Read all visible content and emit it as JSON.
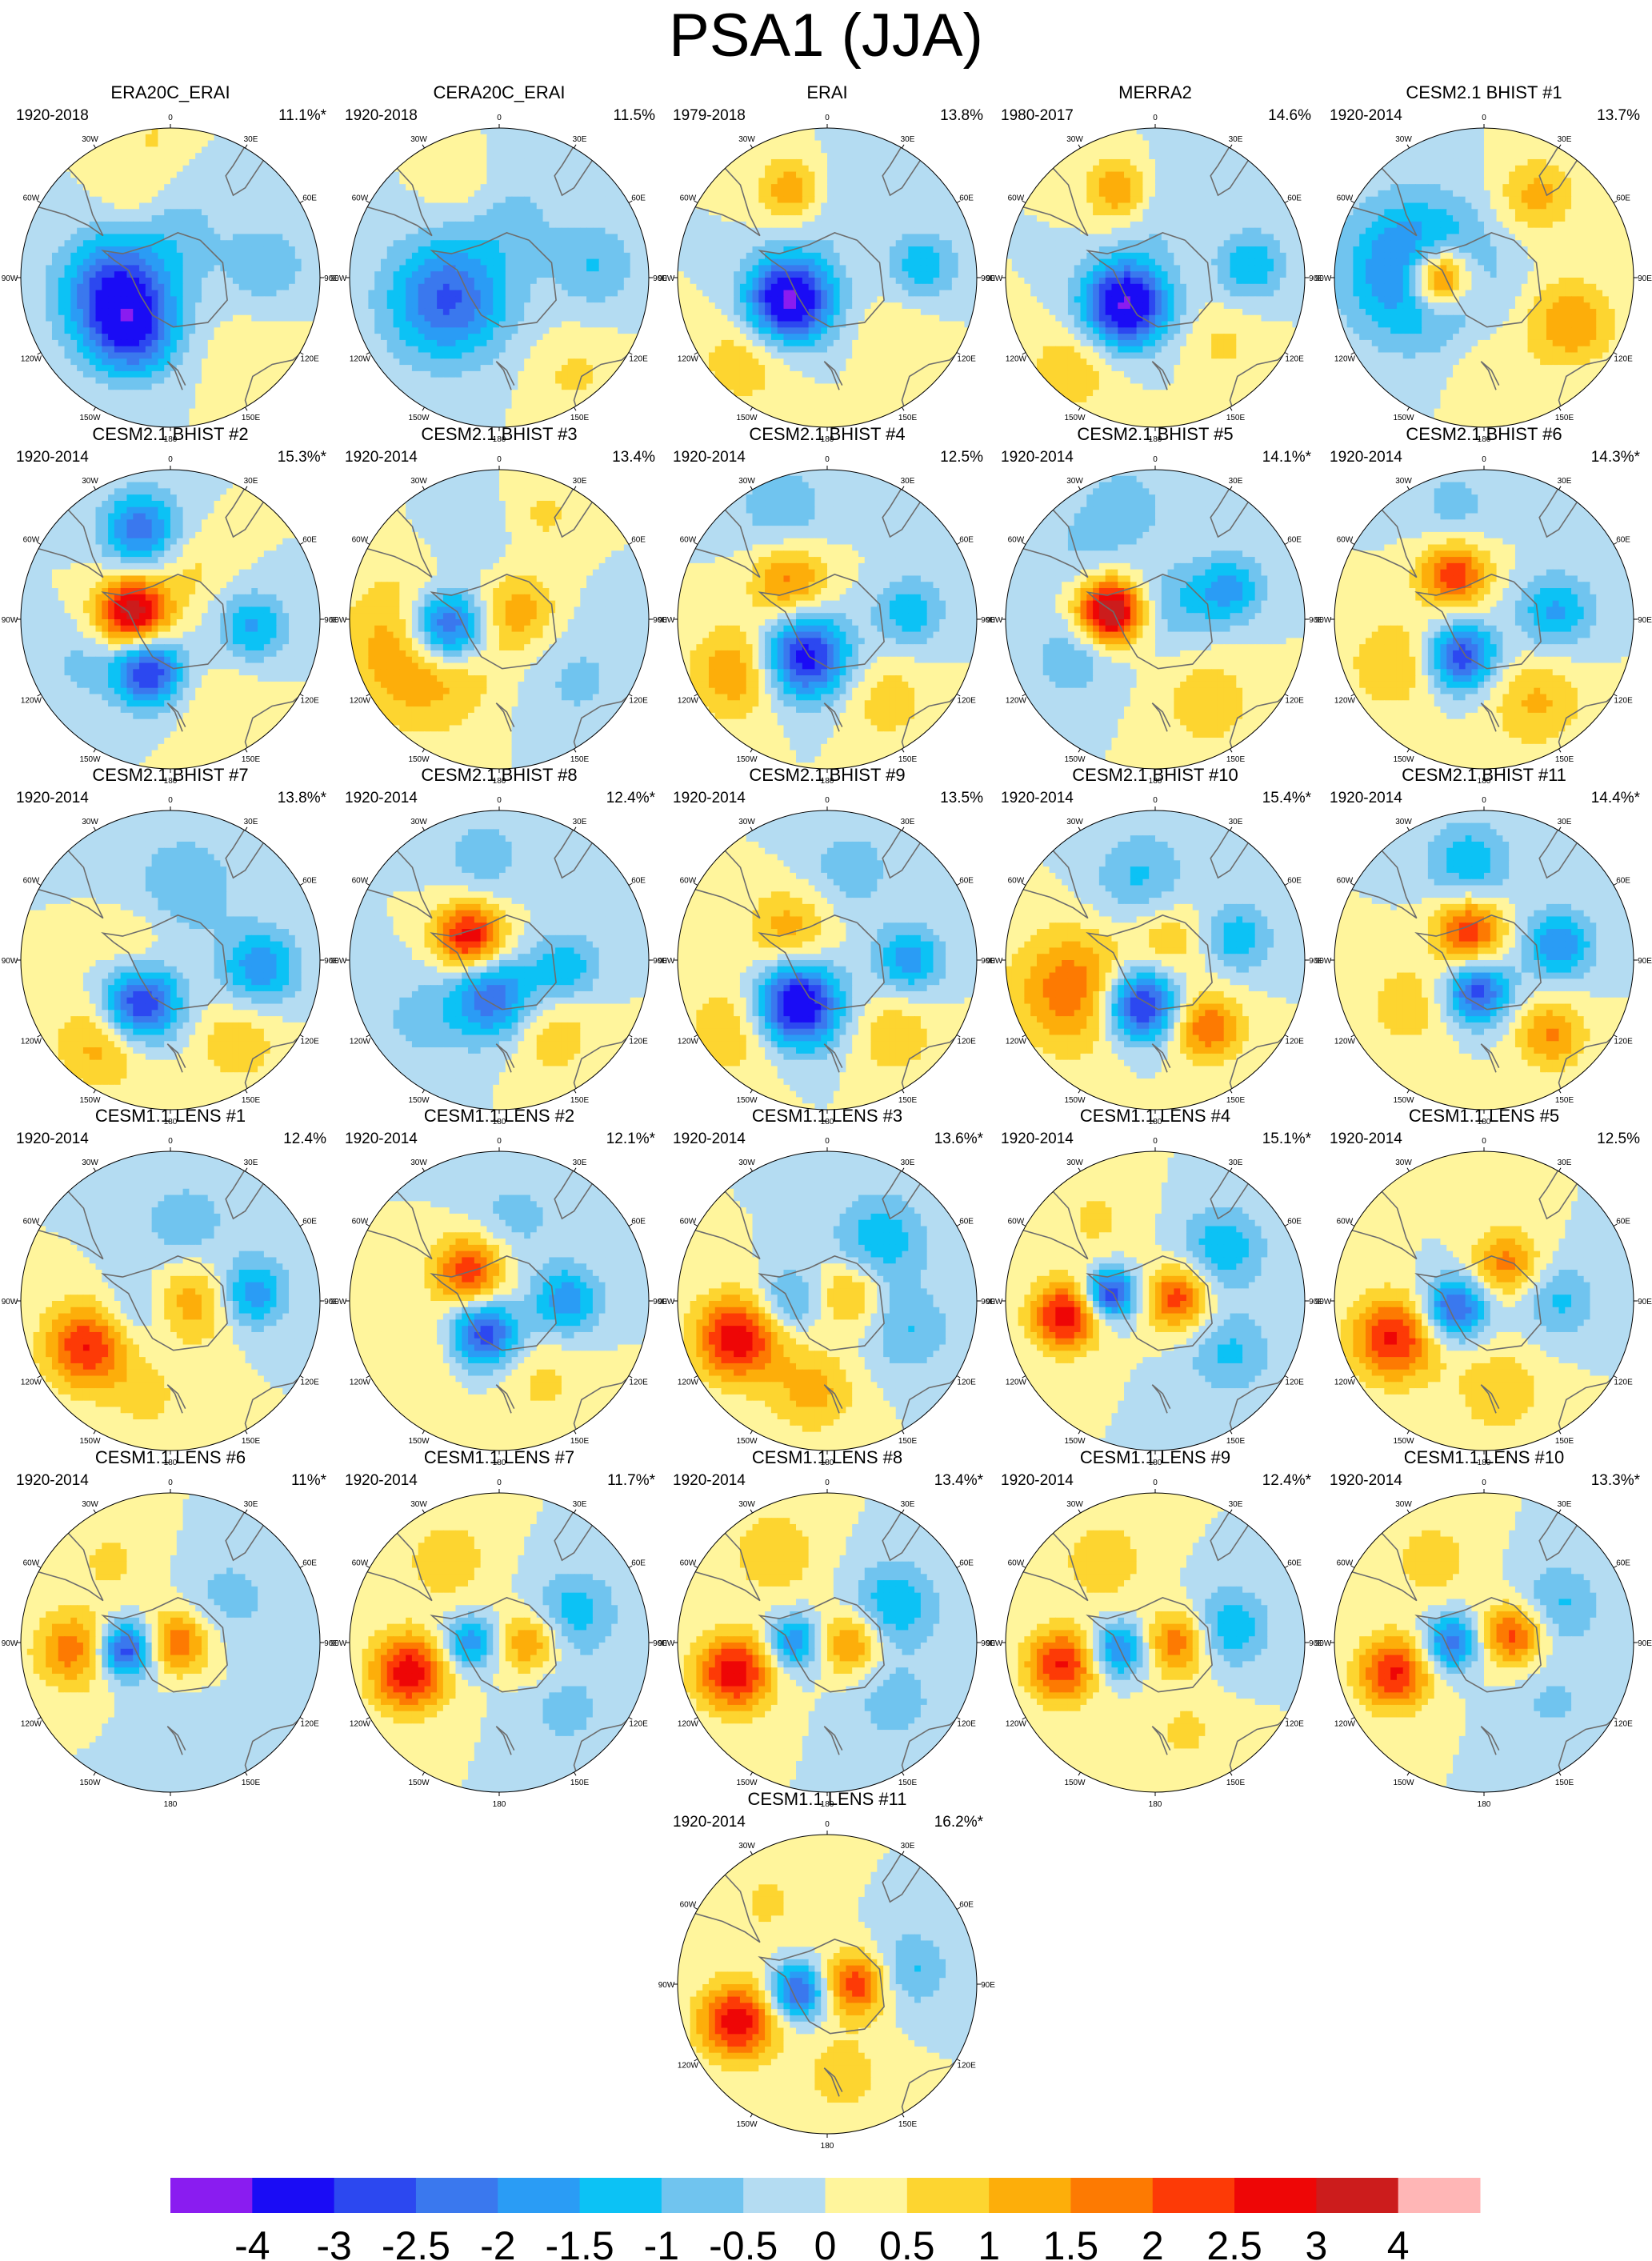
{
  "title": "PSA1 (JJA)",
  "chart_data": {
    "type": "heatmap",
    "projection": "south-polar-stereographic",
    "lon_labels": [
      "0",
      "30E",
      "60E",
      "90E",
      "120E",
      "150E",
      "180",
      "150W",
      "120W",
      "90W",
      "60W",
      "30W"
    ],
    "colorbar": {
      "levels": [
        "-4",
        "-3",
        "-2.5",
        "-2",
        "-1.5",
        "-1",
        "-0.5",
        "0",
        "0.5",
        "1",
        "1.5",
        "2",
        "2.5",
        "3",
        "4"
      ],
      "colors": [
        "#8a1cf0",
        "#1a0cf5",
        "#2c48f0",
        "#3a78ee",
        "#2a9cf5",
        "#0cc2f5",
        "#70c4ef",
        "#b4dcf2",
        "#fff59c",
        "#fdd530",
        "#fdae0a",
        "#fd7a02",
        "#fd3a06",
        "#ee0606",
        "#cc1c1c",
        "#ffb6b6"
      ]
    },
    "panels": [
      {
        "name": "ERA20C_ERAI",
        "period": "1920-2018",
        "pct": "11.1%*",
        "pattern": "era20c"
      },
      {
        "name": "CERA20C_ERAI",
        "period": "1920-2018",
        "pct": "11.5%",
        "pattern": "cera"
      },
      {
        "name": "ERAI",
        "period": "1979-2018",
        "pct": "13.8%",
        "pattern": "erai"
      },
      {
        "name": "MERRA2",
        "period": "1980-2017",
        "pct": "14.6%",
        "pattern": "merra"
      },
      {
        "name": "CESM2.1 BHIST #1",
        "period": "1920-2014",
        "pct": "13.7%",
        "pattern": "b1"
      },
      {
        "name": "CESM2.1 BHIST #2",
        "period": "1920-2014",
        "pct": "15.3%*",
        "pattern": "b2"
      },
      {
        "name": "CESM2.1 BHIST #3",
        "period": "1920-2014",
        "pct": "13.4%",
        "pattern": "b3"
      },
      {
        "name": "CESM2.1 BHIST #4",
        "period": "1920-2014",
        "pct": "12.5%",
        "pattern": "b4"
      },
      {
        "name": "CESM2.1 BHIST #5",
        "period": "1920-2014",
        "pct": "14.1%*",
        "pattern": "b5"
      },
      {
        "name": "CESM2.1 BHIST #6",
        "period": "1920-2014",
        "pct": "14.3%*",
        "pattern": "b6"
      },
      {
        "name": "CESM2.1 BHIST #7",
        "period": "1920-2014",
        "pct": "13.8%*",
        "pattern": "b7"
      },
      {
        "name": "CESM2.1 BHIST #8",
        "period": "1920-2014",
        "pct": "12.4%*",
        "pattern": "b8"
      },
      {
        "name": "CESM2.1 BHIST #9",
        "period": "1920-2014",
        "pct": "13.5%",
        "pattern": "b9"
      },
      {
        "name": "CESM2.1 BHIST #10",
        "period": "1920-2014",
        "pct": "15.4%*",
        "pattern": "b10"
      },
      {
        "name": "CESM2.1 BHIST #11",
        "period": "1920-2014",
        "pct": "14.4%*",
        "pattern": "b11"
      },
      {
        "name": "CESM1.1 LENS #1",
        "period": "1920-2014",
        "pct": "12.4%",
        "pattern": "l1"
      },
      {
        "name": "CESM1.1 LENS #2",
        "period": "1920-2014",
        "pct": "12.1%*",
        "pattern": "l2"
      },
      {
        "name": "CESM1.1 LENS #3",
        "period": "1920-2014",
        "pct": "13.6%*",
        "pattern": "l3"
      },
      {
        "name": "CESM1.1 LENS #4",
        "period": "1920-2014",
        "pct": "15.1%*",
        "pattern": "l4"
      },
      {
        "name": "CESM1.1 LENS #5",
        "period": "1920-2014",
        "pct": "12.5%",
        "pattern": "l5"
      },
      {
        "name": "CESM1.1 LENS #6",
        "period": "1920-2014",
        "pct": "11%*",
        "pattern": "l6"
      },
      {
        "name": "CESM1.1 LENS #7",
        "period": "1920-2014",
        "pct": "11.7%*",
        "pattern": "l7"
      },
      {
        "name": "CESM1.1 LENS #8",
        "period": "1920-2014",
        "pct": "13.4%*",
        "pattern": "l8"
      },
      {
        "name": "CESM1.1 LENS #9",
        "period": "1920-2014",
        "pct": "12.4%*",
        "pattern": "l9"
      },
      {
        "name": "CESM1.1 LENS #10",
        "period": "1920-2014",
        "pct": "13.3%*",
        "pattern": "l10"
      },
      {
        "name": "CESM1.1 LENS #11",
        "period": "1920-2014",
        "pct": "16.2%*",
        "pattern": "l11"
      }
    ]
  }
}
